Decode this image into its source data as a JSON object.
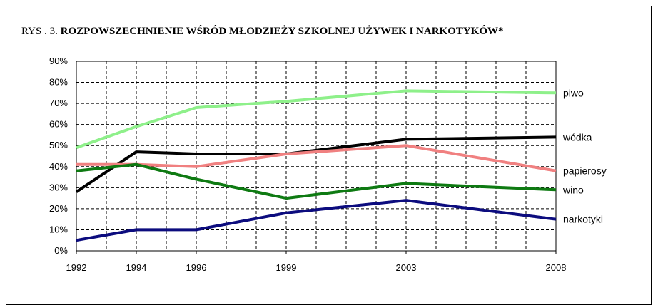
{
  "chart_data": {
    "type": "line",
    "title_prefix": "RYS . 3.",
    "title": "ROZPOWSZECHNIENIE WŚRÓD MŁODZIEŻY SZKOLNEJ UŻYWEK I NARKOTYKÓW*",
    "xlabel": "",
    "ylabel": "",
    "x": [
      1992,
      1994,
      1996,
      1999,
      2003,
      2008
    ],
    "x_tick_labels": [
      "1992",
      "1994",
      "1996",
      "1999",
      "2003",
      "2008"
    ],
    "x_grid": [
      1992,
      1993,
      1994,
      1995,
      1996,
      1997,
      1998,
      1999,
      2000,
      2001,
      2002,
      2003,
      2004,
      2005,
      2006,
      2007,
      2008
    ],
    "ylim": [
      0,
      90
    ],
    "y_ticks": [
      0,
      10,
      20,
      30,
      40,
      50,
      60,
      70,
      80,
      90
    ],
    "y_tick_labels": [
      "0%",
      "10%",
      "20%",
      "30%",
      "40%",
      "50%",
      "60%",
      "70%",
      "80%",
      "90%"
    ],
    "grid": true,
    "series": [
      {
        "name": "piwo",
        "color": "#8ef08a",
        "values": [
          49,
          59,
          68,
          71,
          76,
          75
        ]
      },
      {
        "name": "wódka",
        "color": "#000000",
        "values": [
          28,
          47,
          46,
          46,
          53,
          54
        ]
      },
      {
        "name": "papierosy",
        "color": "#f08080",
        "values": [
          41,
          41,
          40,
          46,
          50,
          38
        ]
      },
      {
        "name": "wino",
        "color": "#0e7a12",
        "values": [
          38,
          41,
          34,
          25,
          32,
          29
        ]
      },
      {
        "name": "narkotyki",
        "color": "#0c0c7e",
        "values": [
          5,
          10,
          10,
          18,
          24,
          15
        ]
      }
    ]
  }
}
